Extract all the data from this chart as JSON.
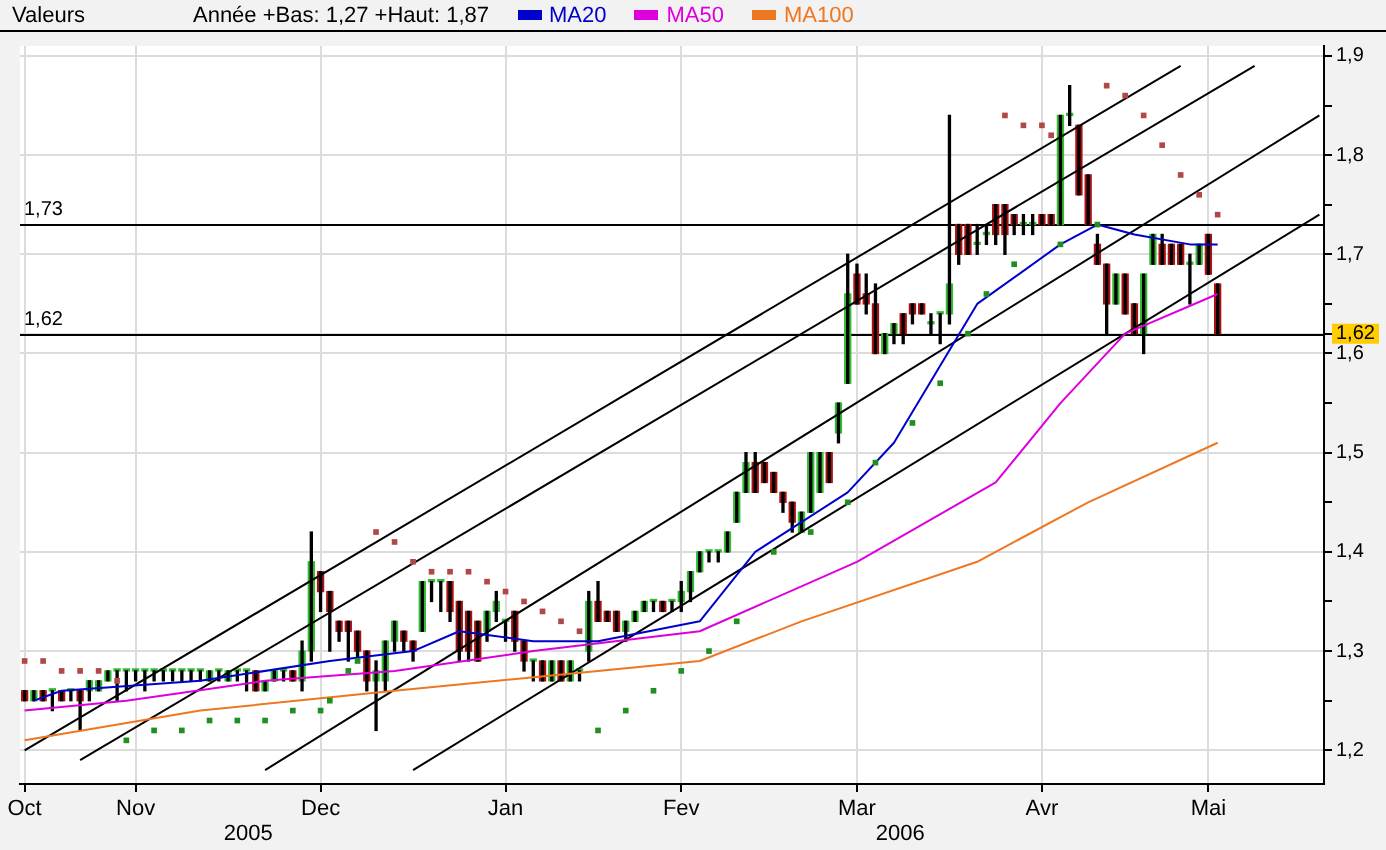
{
  "chart_data": {
    "type": "candlestick",
    "title": "Valeurs",
    "subtitle": "Année +Bas: 1,27 +Haut: 1,87",
    "legend": "top",
    "grid": true,
    "categories": [
      "Oct",
      null,
      null,
      null,
      null,
      null,
      null,
      null,
      null,
      null,
      null,
      null,
      "Nov",
      null,
      null,
      null,
      null,
      null,
      null,
      null,
      null,
      null,
      null,
      null,
      null,
      null,
      null,
      null,
      null,
      null,
      null,
      null,
      "Dec",
      null,
      null,
      null,
      null,
      null,
      null,
      null,
      null,
      null,
      null,
      null,
      null,
      null,
      null,
      null,
      null,
      null,
      null,
      null,
      "Jan",
      null,
      null,
      null,
      null,
      null,
      null,
      null,
      null,
      null,
      null,
      null,
      null,
      null,
      null,
      null,
      null,
      null,
      null,
      "Fev",
      null,
      null,
      null,
      null,
      null,
      null,
      null,
      null,
      null,
      null,
      null,
      null,
      null,
      null,
      null,
      null,
      null,
      null,
      "Mar",
      null,
      null,
      null,
      null,
      null,
      null,
      null,
      null,
      null,
      null,
      null,
      null,
      null,
      null,
      null,
      null,
      null,
      null,
      null,
      "Avr",
      null,
      null,
      null,
      null,
      null,
      null,
      null,
      null,
      null,
      null,
      null,
      null,
      null,
      null,
      null,
      null,
      null,
      "Mai",
      null,
      null,
      null,
      null,
      null,
      null,
      null,
      null,
      null,
      null,
      null,
      null
    ],
    "ohlc": [
      [
        1.26,
        1.26,
        1.25,
        1.25
      ],
      [
        1.25,
        1.26,
        1.25,
        1.26
      ],
      [
        1.26,
        1.26,
        1.25,
        1.25
      ],
      [
        1.26,
        1.26,
        1.24,
        1.26
      ],
      [
        1.26,
        1.26,
        1.25,
        1.25
      ],
      [
        1.26,
        1.26,
        1.25,
        1.26
      ],
      [
        1.26,
        1.26,
        1.22,
        1.25
      ],
      [
        1.26,
        1.27,
        1.25,
        1.27
      ],
      [
        1.26,
        1.27,
        1.26,
        1.27
      ],
      [
        1.27,
        1.28,
        1.27,
        1.28
      ],
      [
        1.28,
        1.28,
        1.25,
        1.28
      ],
      [
        1.28,
        1.28,
        1.26,
        1.28
      ],
      [
        1.28,
        1.28,
        1.27,
        1.28
      ],
      [
        1.28,
        1.28,
        1.26,
        1.28
      ],
      [
        1.28,
        1.28,
        1.27,
        1.28
      ],
      [
        1.28,
        1.28,
        1.27,
        1.28
      ],
      [
        1.28,
        1.28,
        1.27,
        1.28
      ],
      [
        1.28,
        1.28,
        1.27,
        1.28
      ],
      [
        1.28,
        1.28,
        1.27,
        1.28
      ],
      [
        1.28,
        1.28,
        1.27,
        1.28
      ],
      [
        1.27,
        1.28,
        1.27,
        1.28
      ],
      [
        1.28,
        1.28,
        1.27,
        1.28
      ],
      [
        1.27,
        1.28,
        1.27,
        1.28
      ],
      [
        1.28,
        1.28,
        1.27,
        1.28
      ],
      [
        1.28,
        1.28,
        1.26,
        1.28
      ],
      [
        1.28,
        1.28,
        1.26,
        1.26
      ],
      [
        1.26,
        1.27,
        1.26,
        1.27
      ],
      [
        1.27,
        1.28,
        1.27,
        1.28
      ],
      [
        1.28,
        1.28,
        1.27,
        1.28
      ],
      [
        1.28,
        1.28,
        1.27,
        1.27
      ],
      [
        1.27,
        1.31,
        1.26,
        1.3
      ],
      [
        1.3,
        1.42,
        1.29,
        1.39
      ],
      [
        1.38,
        1.38,
        1.34,
        1.36
      ],
      [
        1.36,
        1.36,
        1.3,
        1.34
      ],
      [
        1.33,
        1.33,
        1.31,
        1.32
      ],
      [
        1.33,
        1.33,
        1.29,
        1.32
      ],
      [
        1.32,
        1.32,
        1.29,
        1.3
      ],
      [
        1.3,
        1.3,
        1.26,
        1.27
      ],
      [
        1.27,
        1.29,
        1.22,
        1.28
      ],
      [
        1.27,
        1.31,
        1.26,
        1.31
      ],
      [
        1.31,
        1.33,
        1.3,
        1.33
      ],
      [
        1.32,
        1.32,
        1.3,
        1.31
      ],
      [
        1.31,
        1.31,
        1.29,
        1.3
      ],
      [
        1.32,
        1.37,
        1.32,
        1.37
      ],
      [
        1.37,
        1.37,
        1.35,
        1.37
      ],
      [
        1.37,
        1.37,
        1.34,
        1.37
      ],
      [
        1.37,
        1.37,
        1.33,
        1.34
      ],
      [
        1.35,
        1.35,
        1.29,
        1.3
      ],
      [
        1.34,
        1.34,
        1.29,
        1.3
      ],
      [
        1.33,
        1.33,
        1.29,
        1.29
      ],
      [
        1.32,
        1.34,
        1.31,
        1.34
      ],
      [
        1.34,
        1.36,
        1.33,
        1.35
      ],
      [
        1.33,
        1.33,
        1.31,
        1.33
      ],
      [
        1.34,
        1.34,
        1.3,
        1.31
      ],
      [
        1.31,
        1.31,
        1.28,
        1.29
      ],
      [
        1.29,
        1.29,
        1.27,
        1.29
      ],
      [
        1.29,
        1.29,
        1.27,
        1.27
      ],
      [
        1.27,
        1.29,
        1.27,
        1.29
      ],
      [
        1.29,
        1.29,
        1.27,
        1.27
      ],
      [
        1.27,
        1.29,
        1.27,
        1.29
      ],
      [
        1.28,
        1.28,
        1.27,
        1.28
      ],
      [
        1.3,
        1.36,
        1.29,
        1.35
      ],
      [
        1.35,
        1.37,
        1.33,
        1.33
      ],
      [
        1.34,
        1.34,
        1.33,
        1.33
      ],
      [
        1.34,
        1.34,
        1.32,
        1.32
      ],
      [
        1.32,
        1.33,
        1.31,
        1.33
      ],
      [
        1.33,
        1.34,
        1.33,
        1.34
      ],
      [
        1.34,
        1.35,
        1.34,
        1.35
      ],
      [
        1.35,
        1.35,
        1.34,
        1.35
      ],
      [
        1.35,
        1.35,
        1.34,
        1.34
      ],
      [
        1.35,
        1.35,
        1.34,
        1.35
      ],
      [
        1.35,
        1.37,
        1.34,
        1.36
      ],
      [
        1.36,
        1.38,
        1.35,
        1.38
      ],
      [
        1.38,
        1.4,
        1.38,
        1.4
      ],
      [
        1.4,
        1.4,
        1.39,
        1.4
      ],
      [
        1.4,
        1.4,
        1.39,
        1.4
      ],
      [
        1.4,
        1.42,
        1.4,
        1.42
      ],
      [
        1.43,
        1.46,
        1.43,
        1.46
      ],
      [
        1.46,
        1.5,
        1.46,
        1.49
      ],
      [
        1.49,
        1.5,
        1.46,
        1.46
      ],
      [
        1.49,
        1.49,
        1.47,
        1.47
      ],
      [
        1.48,
        1.48,
        1.46,
        1.46
      ],
      [
        1.46,
        1.46,
        1.44,
        1.45
      ],
      [
        1.45,
        1.45,
        1.42,
        1.43
      ],
      [
        1.42,
        1.44,
        1.42,
        1.44
      ],
      [
        1.44,
        1.5,
        1.44,
        1.5
      ],
      [
        1.46,
        1.5,
        1.46,
        1.5
      ],
      [
        1.5,
        1.5,
        1.47,
        1.47
      ],
      [
        1.52,
        1.55,
        1.51,
        1.55
      ],
      [
        1.57,
        1.7,
        1.57,
        1.66
      ],
      [
        1.68,
        1.69,
        1.65,
        1.65
      ],
      [
        1.66,
        1.68,
        1.64,
        1.65
      ],
      [
        1.65,
        1.67,
        1.6,
        1.6
      ],
      [
        1.6,
        1.62,
        1.6,
        1.62
      ],
      [
        1.62,
        1.63,
        1.61,
        1.63
      ],
      [
        1.64,
        1.64,
        1.61,
        1.62
      ],
      [
        1.65,
        1.65,
        1.63,
        1.64
      ],
      [
        1.65,
        1.65,
        1.64,
        1.64
      ],
      [
        1.63,
        1.64,
        1.62,
        1.63
      ],
      [
        1.64,
        1.64,
        1.61,
        1.64
      ],
      [
        1.64,
        1.84,
        1.63,
        1.67
      ],
      [
        1.73,
        1.73,
        1.69,
        1.7
      ],
      [
        1.73,
        1.73,
        1.7,
        1.7
      ],
      [
        1.71,
        1.73,
        1.7,
        1.71
      ],
      [
        1.72,
        1.73,
        1.71,
        1.72
      ],
      [
        1.75,
        1.75,
        1.71,
        1.72
      ],
      [
        1.75,
        1.75,
        1.7,
        1.72
      ],
      [
        1.74,
        1.74,
        1.72,
        1.73
      ],
      [
        1.73,
        1.74,
        1.72,
        1.73
      ],
      [
        1.73,
        1.74,
        1.72,
        1.73
      ],
      [
        1.74,
        1.74,
        1.73,
        1.73
      ],
      [
        1.74,
        1.74,
        1.73,
        1.73
      ],
      [
        1.73,
        1.84,
        1.73,
        1.84
      ],
      [
        1.84,
        1.87,
        1.83,
        1.84
      ],
      [
        1.83,
        1.83,
        1.76,
        1.76
      ],
      [
        1.78,
        1.78,
        1.73,
        1.73
      ],
      [
        1.71,
        1.72,
        1.69,
        1.69
      ],
      [
        1.69,
        1.69,
        1.62,
        1.65
      ],
      [
        1.65,
        1.68,
        1.65,
        1.68
      ],
      [
        1.68,
        1.68,
        1.64,
        1.64
      ],
      [
        1.65,
        1.65,
        1.62,
        1.62
      ],
      [
        1.62,
        1.68,
        1.6,
        1.68
      ],
      [
        1.69,
        1.72,
        1.69,
        1.72
      ],
      [
        1.71,
        1.72,
        1.69,
        1.69
      ],
      [
        1.71,
        1.71,
        1.69,
        1.69
      ],
      [
        1.71,
        1.71,
        1.69,
        1.69
      ],
      [
        1.69,
        1.7,
        1.65,
        1.69
      ],
      [
        1.69,
        1.71,
        1.69,
        1.71
      ],
      [
        1.72,
        1.72,
        1.68,
        1.68
      ],
      [
        1.67,
        1.67,
        1.62,
        1.62
      ],
      null,
      null,
      null,
      null,
      null,
      null,
      null,
      null,
      null,
      null,
      null
    ],
    "series": [
      {
        "type": "line",
        "name": "MA20",
        "color": "#0000cc",
        "values": [
          null,
          1.25,
          null,
          null,
          1.26,
          null,
          null,
          null,
          null,
          null,
          null,
          null,
          null,
          null,
          null,
          null,
          null,
          null,
          null,
          1.27,
          null,
          null,
          null,
          null,
          null,
          null,
          null,
          null,
          null,
          null,
          null,
          null,
          null,
          1.29,
          null,
          null,
          null,
          null,
          null,
          null,
          null,
          null,
          1.3,
          null,
          null,
          null,
          null,
          1.32,
          null,
          null,
          null,
          null,
          null,
          null,
          null,
          1.31,
          null,
          null,
          null,
          null,
          null,
          null,
          1.31,
          null,
          null,
          null,
          null,
          null,
          null,
          null,
          null,
          null,
          null,
          1.33,
          null,
          null,
          null,
          null,
          null,
          1.4,
          null,
          null,
          null,
          null,
          null,
          null,
          null,
          null,
          null,
          1.46,
          null,
          null,
          null,
          null,
          1.51,
          null,
          null,
          null,
          null,
          null,
          null,
          null,
          null,
          1.65,
          null,
          null,
          null,
          null,
          null,
          null,
          null,
          null,
          1.71,
          null,
          null,
          null,
          1.73,
          null,
          null,
          null,
          1.72,
          null,
          null,
          null,
          null,
          null,
          1.71,
          null,
          null,
          1.71,
          null,
          null,
          null,
          null,
          null,
          null,
          null,
          null,
          null,
          null,
          null
        ]
      },
      {
        "type": "line",
        "name": "MA50",
        "color": "#dd00dd",
        "values": [
          1.24,
          null,
          null,
          null,
          null,
          null,
          null,
          null,
          null,
          null,
          null,
          1.25,
          null,
          null,
          null,
          null,
          null,
          null,
          null,
          null,
          null,
          null,
          null,
          null,
          null,
          null,
          1.27,
          null,
          null,
          null,
          null,
          null,
          null,
          null,
          null,
          null,
          null,
          null,
          null,
          null,
          1.28,
          null,
          null,
          null,
          null,
          null,
          null,
          null,
          null,
          null,
          null,
          null,
          null,
          null,
          null,
          1.3,
          null,
          null,
          null,
          null,
          null,
          null,
          null,
          null,
          null,
          null,
          null,
          null,
          null,
          null,
          null,
          null,
          null,
          1.32,
          null,
          null,
          null,
          null,
          null,
          null,
          null,
          null,
          null,
          null,
          null,
          null,
          null,
          null,
          null,
          null,
          1.39,
          null,
          null,
          null,
          null,
          null,
          null,
          null,
          null,
          null,
          null,
          null,
          null,
          null,
          null,
          1.47,
          null,
          null,
          null,
          null,
          null,
          null,
          1.55,
          null,
          null,
          null,
          null,
          null,
          null,
          1.62,
          null,
          null,
          null,
          null,
          null,
          null,
          null,
          null,
          null,
          1.66,
          null,
          null,
          null,
          null,
          null,
          null,
          null,
          null,
          null,
          null,
          null
        ]
      },
      {
        "type": "line",
        "name": "MA100",
        "color": "#ee7722",
        "values": [
          1.21,
          null,
          null,
          null,
          null,
          null,
          null,
          null,
          null,
          null,
          null,
          null,
          null,
          null,
          null,
          null,
          null,
          null,
          null,
          1.24,
          null,
          null,
          null,
          null,
          null,
          null,
          null,
          null,
          null,
          null,
          null,
          null,
          null,
          null,
          null,
          null,
          null,
          null,
          null,
          null,
          1.26,
          null,
          null,
          null,
          null,
          null,
          null,
          null,
          null,
          null,
          null,
          null,
          null,
          null,
          null,
          null,
          null,
          null,
          null,
          null,
          null,
          null,
          1.28,
          null,
          null,
          null,
          null,
          null,
          null,
          null,
          null,
          null,
          null,
          1.29,
          null,
          null,
          null,
          null,
          null,
          null,
          null,
          null,
          null,
          null,
          1.33,
          null,
          null,
          null,
          null,
          null,
          null,
          null,
          null,
          null,
          null,
          null,
          null,
          null,
          null,
          null,
          null,
          null,
          null,
          1.39,
          null,
          null,
          null,
          null,
          null,
          null,
          null,
          null,
          null,
          null,
          null,
          1.45,
          null,
          null,
          null,
          null,
          null,
          null,
          null,
          null,
          null,
          null,
          null,
          null,
          null,
          1.51,
          null,
          null,
          null,
          null,
          null,
          null,
          null,
          null,
          null,
          null,
          null
        ]
      },
      {
        "type": "scatter",
        "marker": "square",
        "color": "#b04848",
        "values": [
          1.29,
          null,
          1.29,
          null,
          1.28,
          null,
          1.28,
          null,
          1.28,
          null,
          1.27,
          null,
          null,
          null,
          null,
          null,
          null,
          null,
          null,
          null,
          null,
          null,
          null,
          null,
          null,
          null,
          null,
          null,
          null,
          null,
          null,
          null,
          null,
          null,
          null,
          null,
          null,
          null,
          1.42,
          null,
          1.41,
          null,
          1.39,
          null,
          1.38,
          null,
          1.38,
          null,
          1.38,
          null,
          1.37,
          null,
          1.36,
          null,
          1.35,
          null,
          1.34,
          null,
          1.33,
          null,
          1.32,
          null,
          null,
          null,
          null,
          null,
          null,
          null,
          null,
          null,
          null,
          null,
          null,
          null,
          null,
          null,
          null,
          null,
          null,
          null,
          null,
          null,
          null,
          null,
          null,
          null,
          null,
          null,
          null,
          null,
          null,
          null,
          null,
          null,
          null,
          null,
          null,
          null,
          null,
          null,
          null,
          null,
          null,
          null,
          null,
          null,
          1.84,
          null,
          1.83,
          null,
          1.83,
          1.82,
          null,
          null,
          null,
          null,
          null,
          1.87,
          null,
          1.86,
          null,
          1.84,
          null,
          1.81,
          null,
          1.78,
          null,
          1.76,
          null,
          1.74,
          null,
          null,
          null,
          null,
          null,
          null,
          null,
          null,
          null,
          null,
          null
        ]
      },
      {
        "type": "scatter",
        "marker": "square",
        "color": "#1f8f1f",
        "values": [
          null,
          null,
          null,
          null,
          null,
          null,
          null,
          null,
          null,
          null,
          null,
          1.21,
          null,
          null,
          1.22,
          null,
          null,
          1.22,
          null,
          null,
          1.23,
          null,
          null,
          1.23,
          null,
          null,
          1.23,
          null,
          null,
          1.24,
          null,
          null,
          1.24,
          1.25,
          null,
          1.28,
          1.29,
          null,
          null,
          null,
          null,
          null,
          null,
          null,
          null,
          null,
          null,
          null,
          null,
          null,
          null,
          null,
          null,
          null,
          null,
          null,
          null,
          null,
          null,
          null,
          null,
          null,
          1.22,
          null,
          null,
          1.24,
          null,
          null,
          1.26,
          null,
          null,
          1.28,
          null,
          null,
          1.3,
          null,
          null,
          1.33,
          null,
          null,
          null,
          1.4,
          null,
          null,
          null,
          1.42,
          null,
          null,
          null,
          1.45,
          null,
          null,
          1.49,
          null,
          null,
          null,
          1.53,
          null,
          null,
          1.57,
          null,
          null,
          1.62,
          null,
          1.66,
          null,
          null,
          1.69,
          null,
          null,
          null,
          null,
          1.71,
          null,
          null,
          null,
          1.73,
          null,
          null,
          null,
          null,
          null,
          null,
          null,
          null,
          null,
          null,
          null,
          null,
          null,
          null,
          null,
          null,
          null,
          null,
          null,
          null,
          null,
          null,
          null,
          null
        ]
      },
      {
        "type": "line",
        "color": "#000000",
        "values": [
          1.2,
          null,
          null,
          null,
          null,
          null,
          null,
          null,
          null,
          null,
          null,
          null,
          null,
          null,
          null,
          null,
          null,
          null,
          null,
          null,
          null,
          null,
          null,
          null,
          null,
          null,
          null,
          null,
          null,
          null,
          null,
          null,
          null,
          null,
          null,
          null,
          null,
          null,
          null,
          null,
          null,
          null,
          null,
          null,
          null,
          null,
          null,
          null,
          null,
          null,
          null,
          null,
          null,
          null,
          null,
          null,
          null,
          null,
          null,
          null,
          null,
          null,
          null,
          null,
          null,
          null,
          null,
          null,
          null,
          null,
          null,
          null,
          null,
          null,
          null,
          null,
          null,
          null,
          null,
          null,
          null,
          null,
          null,
          null,
          null,
          null,
          null,
          null,
          null,
          null,
          null,
          null,
          null,
          null,
          null,
          null,
          null,
          null,
          null,
          null,
          null,
          null,
          null,
          null,
          null,
          null,
          null,
          null,
          null,
          null,
          null,
          null,
          null,
          null,
          null,
          null,
          null,
          null,
          null,
          null,
          null,
          null,
          null,
          null,
          null,
          1.89,
          null,
          null,
          null,
          null,
          null,
          null,
          null,
          null,
          null,
          null,
          null,
          null,
          null,
          null,
          null
        ]
      },
      {
        "type": "line",
        "color": "#000000",
        "values": [
          null,
          null,
          null,
          null,
          null,
          null,
          1.19,
          null,
          null,
          null,
          null,
          null,
          null,
          null,
          null,
          null,
          null,
          null,
          null,
          null,
          null,
          null,
          null,
          null,
          null,
          null,
          null,
          null,
          null,
          null,
          null,
          null,
          null,
          null,
          null,
          null,
          null,
          null,
          null,
          null,
          null,
          null,
          null,
          null,
          null,
          null,
          null,
          null,
          null,
          null,
          null,
          null,
          null,
          null,
          null,
          null,
          null,
          null,
          null,
          null,
          null,
          null,
          null,
          null,
          null,
          null,
          null,
          null,
          null,
          null,
          null,
          null,
          null,
          null,
          null,
          null,
          null,
          null,
          null,
          null,
          null,
          null,
          null,
          null,
          null,
          null,
          null,
          null,
          null,
          null,
          null,
          null,
          null,
          null,
          null,
          null,
          null,
          null,
          null,
          null,
          null,
          null,
          null,
          null,
          null,
          null,
          null,
          null,
          null,
          null,
          null,
          null,
          null,
          null,
          null,
          null,
          null,
          null,
          null,
          null,
          null,
          null,
          null,
          null,
          null,
          null,
          null,
          null,
          null,
          null,
          null,
          null,
          null,
          1.89,
          null,
          null,
          null,
          null,
          null,
          null,
          null
        ]
      },
      {
        "type": "line",
        "color": "#000000",
        "values": [
          null,
          null,
          null,
          null,
          null,
          null,
          null,
          null,
          null,
          null,
          null,
          null,
          null,
          null,
          null,
          null,
          null,
          null,
          null,
          null,
          null,
          null,
          null,
          null,
          null,
          null,
          1.18,
          null,
          null,
          null,
          null,
          null,
          null,
          null,
          null,
          null,
          null,
          null,
          null,
          null,
          null,
          null,
          null,
          null,
          null,
          null,
          null,
          null,
          null,
          null,
          null,
          null,
          null,
          null,
          null,
          null,
          null,
          null,
          null,
          null,
          null,
          null,
          null,
          null,
          null,
          null,
          null,
          null,
          null,
          null,
          null,
          null,
          null,
          null,
          null,
          null,
          null,
          null,
          null,
          null,
          null,
          null,
          null,
          null,
          null,
          null,
          null,
          null,
          null,
          null,
          null,
          null,
          null,
          null,
          null,
          null,
          null,
          null,
          null,
          null,
          null,
          null,
          null,
          null,
          null,
          null,
          null,
          null,
          null,
          null,
          null,
          null,
          null,
          null,
          null,
          null,
          null,
          null,
          null,
          null,
          null,
          null,
          null,
          null,
          null,
          null,
          null,
          null,
          null,
          null,
          null,
          null,
          null,
          null,
          null,
          null,
          null,
          null,
          null,
          null,
          1.84
        ]
      },
      {
        "type": "line",
        "color": "#000000",
        "values": [
          null,
          null,
          null,
          null,
          null,
          null,
          null,
          null,
          null,
          null,
          null,
          null,
          null,
          null,
          null,
          null,
          null,
          null,
          null,
          null,
          null,
          null,
          null,
          null,
          null,
          null,
          null,
          null,
          null,
          null,
          null,
          null,
          null,
          null,
          null,
          null,
          null,
          null,
          null,
          null,
          null,
          null,
          1.18,
          null,
          null,
          null,
          null,
          null,
          null,
          null,
          null,
          null,
          null,
          null,
          null,
          null,
          null,
          null,
          null,
          null,
          null,
          null,
          null,
          null,
          null,
          null,
          null,
          null,
          null,
          null,
          null,
          null,
          null,
          null,
          null,
          null,
          null,
          null,
          null,
          null,
          null,
          null,
          null,
          null,
          null,
          null,
          null,
          null,
          null,
          null,
          null,
          null,
          null,
          null,
          null,
          null,
          null,
          null,
          null,
          null,
          null,
          null,
          null,
          null,
          null,
          null,
          null,
          null,
          null,
          null,
          null,
          null,
          null,
          null,
          null,
          null,
          null,
          null,
          null,
          null,
          null,
          null,
          null,
          null,
          null,
          null,
          null,
          null,
          null,
          null,
          null,
          null,
          null,
          null,
          null,
          null,
          null,
          null,
          null,
          null,
          1.74
        ]
      }
    ],
    "ylim": [
      1.166,
      1.91
    ],
    "yticks": [
      {
        "value": 1.2,
        "label": "1,2"
      },
      {
        "value": 1.25,
        "label": null
      },
      {
        "value": 1.3,
        "label": "1,3"
      },
      {
        "value": 1.35,
        "label": null
      },
      {
        "value": 1.4,
        "label": "1,4"
      },
      {
        "value": 1.45,
        "label": null
      },
      {
        "value": 1.5,
        "label": "1,5"
      },
      {
        "value": 1.55,
        "label": null
      },
      {
        "value": 1.6,
        "label": "1,6"
      },
      {
        "value": 1.62,
        "label": "1,62"
      },
      {
        "value": 1.65,
        "label": null
      },
      {
        "value": 1.7,
        "label": "1,7"
      },
      {
        "value": 1.75,
        "label": null
      },
      {
        "value": 1.8,
        "label": "1,8"
      },
      {
        "value": 1.85,
        "label": null
      },
      {
        "value": 1.9,
        "label": "1,9"
      }
    ],
    "ref_lines": [
      {
        "axis": "y",
        "value": 1.73,
        "label": "1,73",
        "color": "#000000"
      },
      {
        "axis": "y",
        "value": 1.62,
        "label": "1,62",
        "color": "#000000"
      }
    ],
    "annotations": [
      "2005",
      "2006"
    ]
  }
}
